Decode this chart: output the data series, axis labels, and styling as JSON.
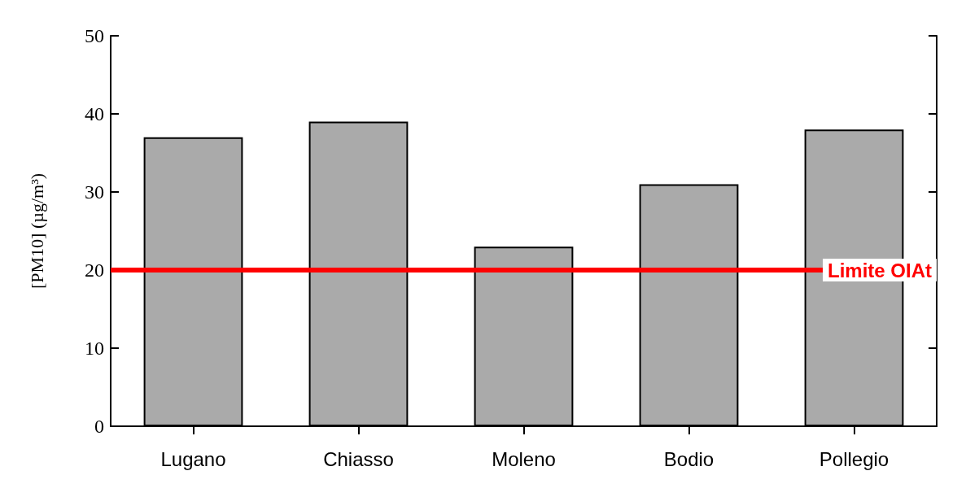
{
  "chart_data": {
    "type": "bar",
    "ylabel": "[PM10] (µg/m³)",
    "categories": [
      "Lugano",
      "Chiasso",
      "Moleno",
      "Bodio",
      "Pollegio"
    ],
    "values": [
      37,
      39,
      23,
      31,
      38
    ],
    "color": "#aaaaaa",
    "ylim": [
      0,
      50
    ],
    "yticks": [
      0,
      10,
      20,
      30,
      40,
      50
    ],
    "grid": false,
    "ref_lines": [
      {
        "axis": "y",
        "value": 20,
        "label": "Limite OIAt",
        "color": "#ff0000"
      }
    ]
  }
}
